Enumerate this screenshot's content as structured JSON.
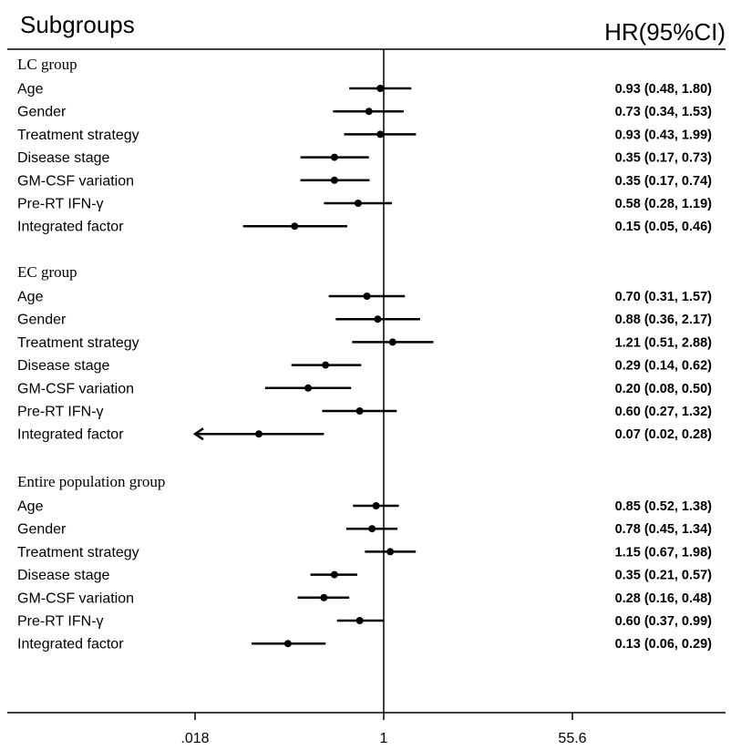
{
  "header": {
    "left": "Subgroups",
    "right": "HR(95%CI)"
  },
  "chart_data": {
    "type": "forest",
    "x_scale": "log",
    "reference_line": 1,
    "xlim": [
      0.018,
      55.6
    ],
    "x_ticks": [
      {
        "value": 0.018,
        "label": ".018"
      },
      {
        "value": 1,
        "label": "1"
      },
      {
        "value": 55.6,
        "label": "55.6"
      }
    ],
    "groups": [
      {
        "name": "LC group",
        "rows": [
          {
            "label": "Age",
            "hr": 0.93,
            "lo": 0.48,
            "hi": 1.8,
            "text": "0.93 (0.48, 1.80)"
          },
          {
            "label": "Gender",
            "hr": 0.73,
            "lo": 0.34,
            "hi": 1.53,
            "text": "0.73 (0.34, 1.53)"
          },
          {
            "label": "Treatment strategy",
            "hr": 0.93,
            "lo": 0.43,
            "hi": 1.99,
            "text": "0.93 (0.43, 1.99)"
          },
          {
            "label": "Disease stage",
            "hr": 0.35,
            "lo": 0.17,
            "hi": 0.73,
            "text": "0.35 (0.17, 0.73)"
          },
          {
            "label": "GM-CSF variation",
            "hr": 0.35,
            "lo": 0.17,
            "hi": 0.74,
            "text": "0.35 (0.17, 0.74)"
          },
          {
            "label": "Pre-RT IFN-γ",
            "hr": 0.58,
            "lo": 0.28,
            "hi": 1.19,
            "text": "0.58 (0.28, 1.19)"
          },
          {
            "label": "Integrated factor",
            "hr": 0.15,
            "lo": 0.05,
            "hi": 0.46,
            "text": "0.15 (0.05, 0.46)"
          }
        ]
      },
      {
        "name": "EC group",
        "rows": [
          {
            "label": "Age",
            "hr": 0.7,
            "lo": 0.31,
            "hi": 1.57,
            "text": "0.70 (0.31, 1.57)"
          },
          {
            "label": "Gender",
            "hr": 0.88,
            "lo": 0.36,
            "hi": 2.17,
            "text": "0.88 (0.36, 2.17)"
          },
          {
            "label": "Treatment strategy",
            "hr": 1.21,
            "lo": 0.51,
            "hi": 2.88,
            "text": "1.21 (0.51, 2.88)"
          },
          {
            "label": "Disease stage",
            "hr": 0.29,
            "lo": 0.14,
            "hi": 0.62,
            "text": "0.29 (0.14, 0.62)"
          },
          {
            "label": "GM-CSF variation",
            "hr": 0.2,
            "lo": 0.08,
            "hi": 0.5,
            "text": "0.20 (0.08, 0.50)"
          },
          {
            "label": "Pre-RT IFN-γ",
            "hr": 0.6,
            "lo": 0.27,
            "hi": 1.32,
            "text": "0.60 (0.27, 1.32)"
          },
          {
            "label": "Integrated factor",
            "hr": 0.07,
            "lo": 0.02,
            "hi": 0.28,
            "text": "0.07 (0.02, 0.28)",
            "lo_arrow": true
          }
        ]
      },
      {
        "name": "Entire population group",
        "rows": [
          {
            "label": "Age",
            "hr": 0.85,
            "lo": 0.52,
            "hi": 1.38,
            "text": "0.85 (0.52, 1.38)"
          },
          {
            "label": "Gender",
            "hr": 0.78,
            "lo": 0.45,
            "hi": 1.34,
            "text": "0.78 (0.45, 1.34)"
          },
          {
            "label": "Treatment strategy",
            "hr": 1.15,
            "lo": 0.67,
            "hi": 1.98,
            "text": "1.15 (0.67, 1.98)"
          },
          {
            "label": "Disease stage",
            "hr": 0.35,
            "lo": 0.21,
            "hi": 0.57,
            "text": "0.35 (0.21, 0.57)"
          },
          {
            "label": "GM-CSF variation",
            "hr": 0.28,
            "lo": 0.16,
            "hi": 0.48,
            "text": "0.28 (0.16, 0.48)"
          },
          {
            "label": "Pre-RT IFN-γ",
            "hr": 0.6,
            "lo": 0.37,
            "hi": 0.99,
            "text": "0.60 (0.37, 0.99)"
          },
          {
            "label": "Integrated factor",
            "hr": 0.13,
            "lo": 0.06,
            "hi": 0.29,
            "text": "0.13 (0.06, 0.29)"
          }
        ]
      }
    ]
  }
}
